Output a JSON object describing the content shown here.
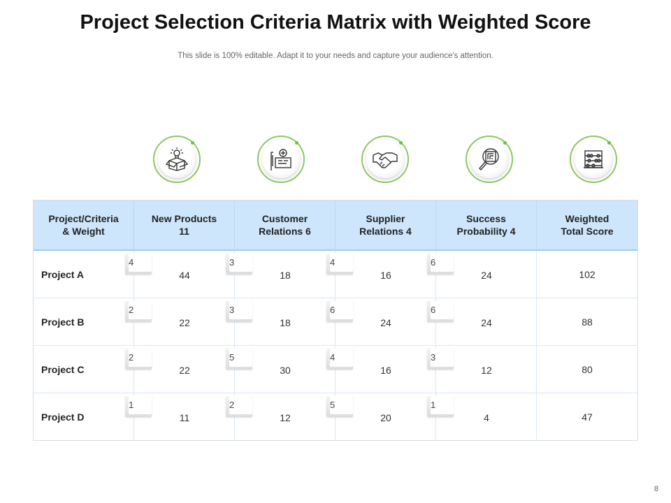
{
  "slide": {
    "title": "Project Selection Criteria Matrix with Weighted Score",
    "subtitle": "This slide is 100% editable. Adapt it to your needs and capture your audience's attention.",
    "page_number": "8"
  },
  "icons": [
    "lightbulb-box-icon",
    "planning-board-icon",
    "handshake-icon",
    "maze-magnifier-icon",
    "abacus-icon"
  ],
  "colors": {
    "header_bg": "#cde6fb",
    "accent_green": "#8cc764",
    "header_border": "#9ccbf2"
  },
  "matrix": {
    "headers": [
      "Project/Criteria\n& Weight",
      "New Products\n11",
      "Customer\nRelations 6",
      "Supplier\nRelations 4",
      "Success\nProbability 4",
      "Weighted\nTotal Score"
    ],
    "rows": [
      {
        "project": "Project A",
        "weights": [
          "4",
          "3",
          "4",
          "6"
        ],
        "scores": [
          "44",
          "18",
          "16",
          "24"
        ],
        "total": "102"
      },
      {
        "project": "Project B",
        "weights": [
          "2",
          "3",
          "6",
          "6"
        ],
        "scores": [
          "22",
          "18",
          "24",
          "24"
        ],
        "total": "88"
      },
      {
        "project": "Project C",
        "weights": [
          "2",
          "5",
          "4",
          "3"
        ],
        "scores": [
          "22",
          "30",
          "16",
          "12"
        ],
        "total": "80"
      },
      {
        "project": "Project D",
        "weights": [
          "1",
          "2",
          "5",
          "1"
        ],
        "scores": [
          "11",
          "12",
          "20",
          "4"
        ],
        "total": "47"
      }
    ]
  }
}
